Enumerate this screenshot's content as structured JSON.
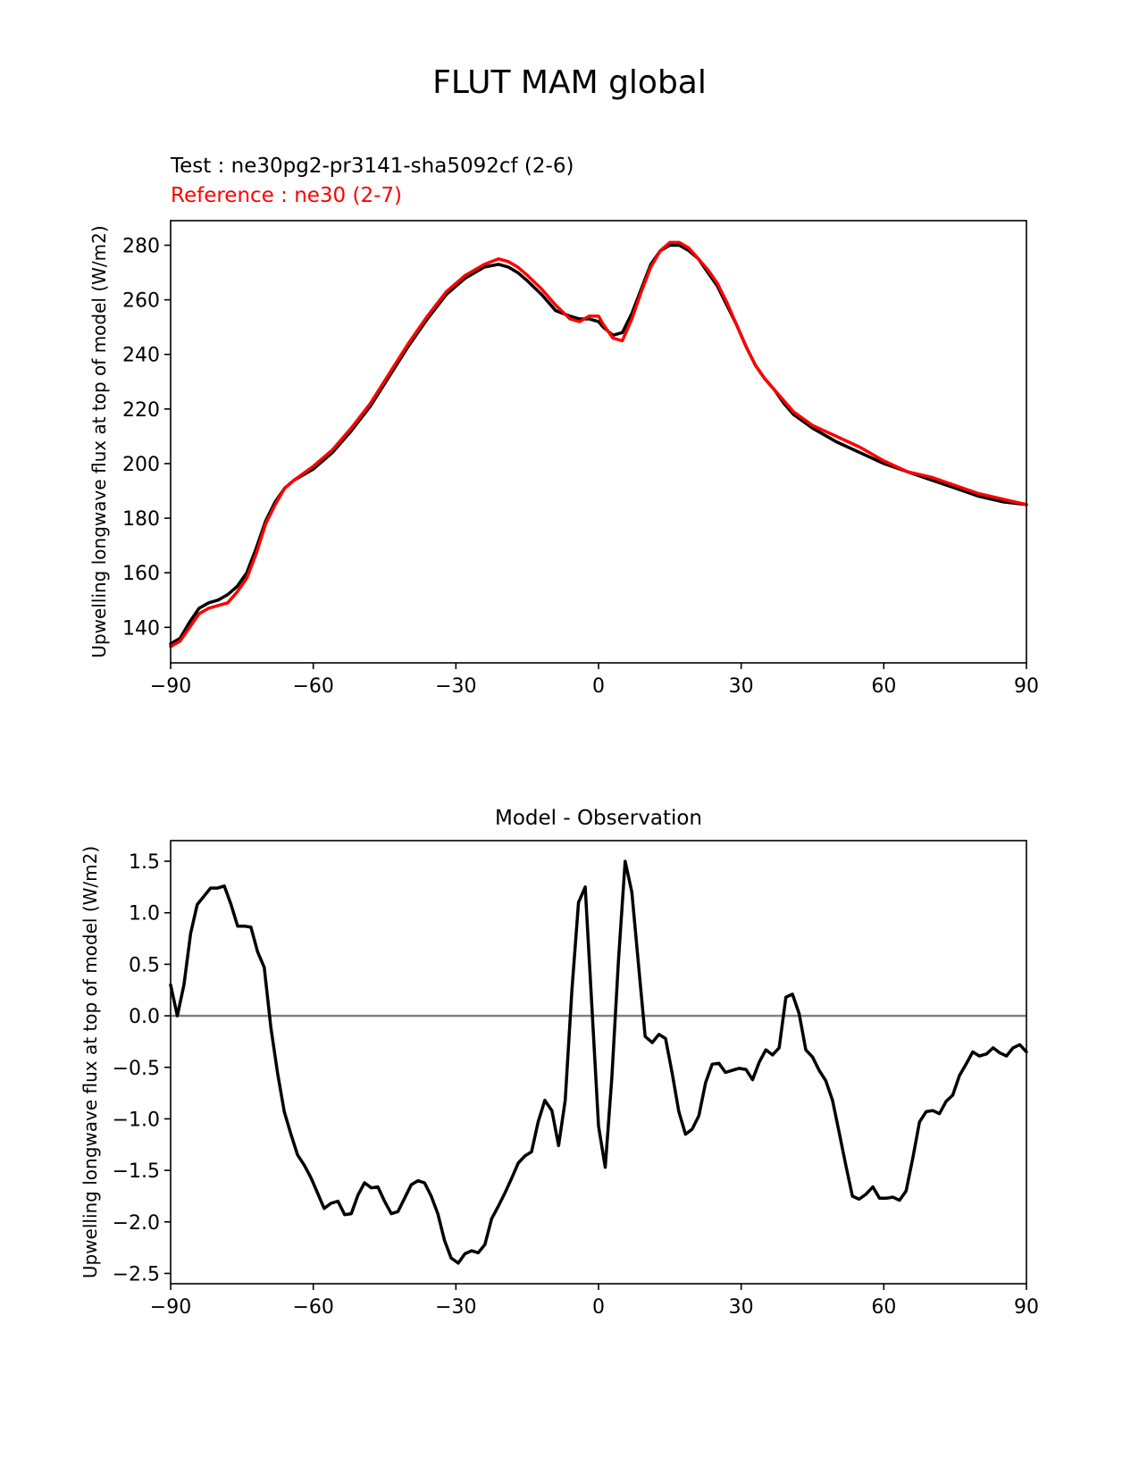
{
  "figure_title": "FLUT MAM global",
  "legend": {
    "test_label": "Test : ne30pg2-pr3141-sha5092cf (2-6)",
    "reference_label": "Reference : ne30 (2-7)"
  },
  "colors": {
    "test": "#000000",
    "reference": "#ff0000",
    "zero_line": "#808080"
  },
  "chart_data": [
    {
      "type": "line",
      "xlabel": "",
      "ylabel": "Upwelling longwave flux at top of model (W/m2)",
      "xlim": [
        -90,
        90
      ],
      "ylim": [
        127,
        289
      ],
      "xticks": [
        -90,
        -60,
        -30,
        0,
        30,
        60,
        90
      ],
      "xtick_labels": [
        "−90",
        "−60",
        "−30",
        "0",
        "30",
        "60",
        "90"
      ],
      "yticks": [
        140,
        160,
        180,
        200,
        220,
        240,
        260,
        280
      ],
      "ytick_labels": [
        "140",
        "160",
        "180",
        "200",
        "220",
        "240",
        "260",
        "280"
      ],
      "series": [
        {
          "name": "Test : ne30pg2-pr3141-sha5092cf (2-6)",
          "x": [
            -90,
            -88,
            -86,
            -84,
            -82,
            -80,
            -78,
            -76,
            -74,
            -72,
            -70,
            -68,
            -66,
            -64,
            -60,
            -56,
            -52,
            -48,
            -44,
            -40,
            -36,
            -32,
            -28,
            -24,
            -21,
            -19,
            -17,
            -15,
            -12,
            -9,
            -6,
            -4,
            -2,
            0,
            1,
            3,
            5,
            7,
            9,
            11,
            13,
            15,
            17,
            19,
            21,
            23,
            25,
            27,
            29,
            31,
            33,
            35,
            37,
            39,
            41,
            45,
            50,
            55,
            60,
            65,
            70,
            75,
            80,
            85,
            90
          ],
          "y": [
            134,
            136,
            142,
            147,
            149,
            150,
            152,
            155,
            160,
            169,
            179,
            186,
            191,
            194,
            198,
            204,
            212,
            221,
            232,
            243,
            253,
            262,
            268,
            272,
            273,
            272,
            270,
            267,
            262,
            256,
            254,
            253,
            253,
            252,
            250,
            247,
            248,
            255,
            264,
            273,
            278,
            280,
            280,
            278,
            275,
            270,
            265,
            258,
            251,
            243,
            236,
            231,
            227,
            222,
            218,
            213,
            208,
            204,
            200,
            197,
            194,
            191,
            188,
            186,
            185
          ]
        },
        {
          "name": "Reference : ne30 (2-7)",
          "x": [
            -90,
            -88,
            -86,
            -84,
            -82,
            -80,
            -78,
            -76,
            -74,
            -72,
            -70,
            -68,
            -66,
            -64,
            -60,
            -56,
            -52,
            -48,
            -44,
            -40,
            -36,
            -32,
            -28,
            -24,
            -21,
            -19,
            -17,
            -15,
            -12,
            -9,
            -6,
            -4,
            -2,
            0,
            1,
            3,
            5,
            7,
            9,
            11,
            13,
            15,
            17,
            19,
            21,
            23,
            25,
            27,
            29,
            31,
            33,
            35,
            37,
            39,
            41,
            45,
            50,
            55,
            60,
            65,
            70,
            75,
            80,
            85,
            90
          ],
          "y": [
            133,
            135,
            140,
            145,
            147,
            148,
            149,
            153,
            158,
            167,
            178,
            185,
            191,
            194,
            199,
            205,
            213,
            222,
            233,
            244,
            254,
            263,
            269,
            273,
            275,
            274,
            272,
            269,
            264,
            258,
            253,
            252,
            254,
            254,
            251,
            246,
            245,
            253,
            263,
            272,
            278,
            281,
            281,
            279,
            275,
            271,
            266,
            259,
            251,
            243,
            236,
            231,
            227,
            223,
            219,
            214,
            210,
            206,
            201,
            197,
            195,
            192,
            189,
            187,
            185
          ]
        }
      ]
    },
    {
      "type": "line",
      "title": "Model - Observation",
      "xlabel": "",
      "ylabel": "Upwelling longwave flux at top of model (W/m2)",
      "xlim": [
        -90,
        90
      ],
      "ylim": [
        -2.6,
        1.7
      ],
      "xticks": [
        -90,
        -60,
        -30,
        0,
        30,
        60,
        90
      ],
      "xtick_labels": [
        "−90",
        "−60",
        "−30",
        "0",
        "30",
        "60",
        "90"
      ],
      "yticks": [
        -2.5,
        -2.0,
        -1.5,
        -1.0,
        -0.5,
        0.0,
        0.5,
        1.0,
        1.5
      ],
      "ytick_labels": [
        "−2.5",
        "−2.0",
        "−1.5",
        "−1.0",
        "−0.5",
        "0.0",
        "0.5",
        "1.0",
        "1.5"
      ],
      "reference_line": 0.0,
      "series": [
        {
          "name": "Model - Observation",
          "x": [
            -90,
            -88.6,
            -87.2,
            -85.8,
            -84.4,
            -83,
            -81.6,
            -80.1,
            -78.7,
            -77.3,
            -75.9,
            -74.5,
            -73.1,
            -71.7,
            -70.3,
            -68.9,
            -67.5,
            -66.1,
            -64.7,
            -63.3,
            -61.9,
            -60.5,
            -59.1,
            -57.7,
            -56.3,
            -54.8,
            -53.4,
            -52,
            -50.6,
            -49.2,
            -47.8,
            -46.4,
            -45,
            -43.6,
            -42.2,
            -40.8,
            -39.4,
            -38,
            -36.6,
            -35.2,
            -33.8,
            -32.4,
            -31,
            -29.5,
            -28.1,
            -26.7,
            -25.3,
            -23.9,
            -22.5,
            -21.1,
            -19.7,
            -18.3,
            -16.9,
            -15.5,
            -14.1,
            -12.7,
            -11.3,
            -9.8,
            -8.4,
            -7,
            -5.6,
            -4.2,
            -2.8,
            -1.4,
            0,
            1.4,
            2.8,
            4.2,
            5.6,
            7,
            8.4,
            9.8,
            11.3,
            12.7,
            14.1,
            15.5,
            16.9,
            18.3,
            19.7,
            21.1,
            22.5,
            23.9,
            25.3,
            26.7,
            28.1,
            29.5,
            31,
            32.4,
            33.8,
            35.2,
            36.6,
            38,
            39.4,
            40.8,
            42.2,
            43.6,
            45,
            46.4,
            47.8,
            49.2,
            50.6,
            52,
            53.4,
            54.8,
            56.3,
            57.7,
            59.1,
            60.5,
            61.9,
            63.3,
            64.7,
            66.1,
            67.5,
            68.9,
            70.3,
            71.7,
            73.1,
            74.5,
            75.9,
            77.3,
            78.7,
            80.1,
            81.6,
            83,
            84.4,
            85.8,
            87.2,
            88.6,
            90
          ],
          "y": [
            0.3,
            0.0,
            0.3,
            0.8,
            1.08,
            1.16,
            1.24,
            1.24,
            1.26,
            1.08,
            0.87,
            0.87,
            0.86,
            0.62,
            0.47,
            -0.12,
            -0.56,
            -0.93,
            -1.15,
            -1.35,
            -1.45,
            -1.57,
            -1.72,
            -1.87,
            -1.82,
            -1.8,
            -1.93,
            -1.92,
            -1.74,
            -1.62,
            -1.67,
            -1.66,
            -1.8,
            -1.92,
            -1.9,
            -1.77,
            -1.64,
            -1.6,
            -1.62,
            -1.75,
            -1.92,
            -2.18,
            -2.35,
            -2.4,
            -2.31,
            -2.28,
            -2.3,
            -2.22,
            -1.97,
            -1.85,
            -1.72,
            -1.58,
            -1.43,
            -1.36,
            -1.32,
            -1.03,
            -0.82,
            -0.92,
            -1.26,
            -0.82,
            0.25,
            1.1,
            1.25,
            0.1,
            -1.07,
            -1.47,
            -0.6,
            0.55,
            1.5,
            1.2,
            0.5,
            -0.2,
            -0.26,
            -0.18,
            -0.22,
            -0.56,
            -0.93,
            -1.15,
            -1.1,
            -0.97,
            -0.65,
            -0.47,
            -0.46,
            -0.55,
            -0.53,
            -0.51,
            -0.52,
            -0.62,
            -0.45,
            -0.33,
            -0.38,
            -0.31,
            0.18,
            0.21,
            0.02,
            -0.33,
            -0.4,
            -0.53,
            -0.63,
            -0.82,
            -1.13,
            -1.45,
            -1.75,
            -1.78,
            -1.73,
            -1.66,
            -1.77,
            -1.77,
            -1.76,
            -1.79,
            -1.7,
            -1.38,
            -1.03,
            -0.93,
            -0.92,
            -0.95,
            -0.83,
            -0.77,
            -0.58,
            -0.47,
            -0.35,
            -0.39,
            -0.37,
            -0.31,
            -0.36,
            -0.39,
            -0.31,
            -0.28,
            -0.35
          ]
        }
      ]
    }
  ]
}
